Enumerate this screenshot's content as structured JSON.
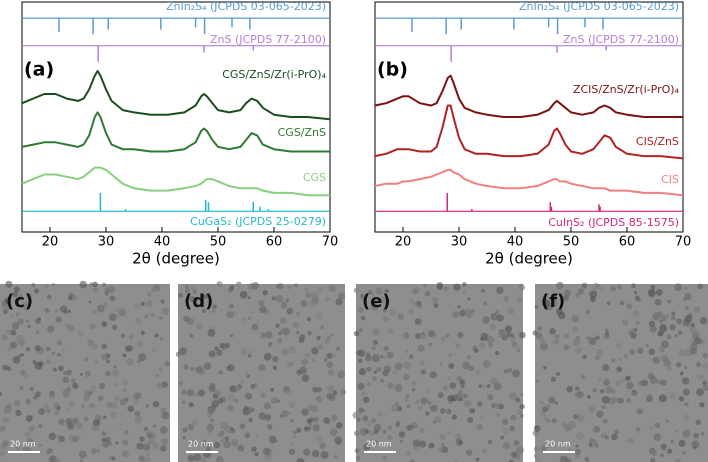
{
  "chart_data": [
    {
      "type": "line",
      "label": "(a)",
      "xlabel": "2θ (degree)",
      "xlim": [
        15,
        70
      ],
      "xticks": [
        20,
        30,
        40,
        50,
        60,
        70
      ],
      "ylim": [
        0,
        100
      ],
      "x": [
        15,
        17,
        19,
        20,
        21,
        23,
        25,
        26,
        27,
        28,
        28.5,
        29,
        30,
        31,
        33,
        35,
        38,
        41,
        44,
        46,
        47,
        47.5,
        48,
        49,
        50,
        52,
        54,
        55,
        56,
        57,
        58,
        60,
        63,
        66,
        70
      ],
      "series": [
        {
          "name": "CGS/ZnS/Zr(i-PrO)₄",
          "color": "#1b4d1f",
          "values": [
            56,
            58,
            60,
            60,
            60,
            58,
            57,
            58,
            62,
            68,
            70,
            68,
            62,
            57,
            53,
            52,
            51,
            51,
            52,
            55,
            59,
            60,
            59,
            56,
            53,
            52,
            53,
            56,
            58,
            57,
            54,
            51,
            50,
            50,
            49
          ]
        },
        {
          "name": "CGS/ZnS",
          "color": "#2f7a34",
          "values": [
            37,
            38,
            39,
            39,
            39,
            38,
            37,
            38,
            42,
            50,
            52,
            50,
            43,
            38,
            36,
            36,
            35,
            35,
            36,
            39,
            44,
            45,
            44,
            40,
            37,
            36,
            37,
            40,
            43,
            42,
            38,
            36,
            35,
            35,
            35
          ]
        },
        {
          "name": "CGS",
          "color": "#86d07e",
          "values": [
            21,
            23,
            25,
            25,
            25,
            24,
            23,
            24,
            26,
            28,
            28,
            28,
            27,
            25,
            21,
            19,
            18,
            18,
            19,
            20,
            21,
            22,
            23,
            23,
            22,
            20,
            19,
            19,
            19,
            19,
            18,
            17,
            17,
            16,
            16
          ]
        }
      ],
      "references": [
        {
          "name": "ZnIn₂S₄ (JCPDS 03-065-2023)",
          "color": "#5b9bd5",
          "base": 93,
          "positions": [
            21.6,
            27.7,
            30.4,
            39.8,
            46,
            47.6,
            52.5,
            55.7
          ],
          "values": [
            87,
            86,
            88,
            88,
            89,
            86,
            89,
            88
          ]
        },
        {
          "name": "ZnS (JCPDS 77-2100)",
          "color": "#b57edc",
          "base": 81,
          "positions": [
            28.6,
            47.5,
            56.3
          ],
          "values": [
            74,
            78,
            79
          ]
        },
        {
          "name": "CuGaS₂ (JCPDS 25-0279)",
          "color": "#26b8c8",
          "base": 9,
          "positions": [
            29,
            33.5,
            47.8,
            48.3,
            56.3,
            57.5,
            59
          ],
          "values": [
            17,
            10,
            14,
            13,
            13,
            11,
            10
          ]
        }
      ]
    },
    {
      "type": "line",
      "label": "(b)",
      "xlabel": "2θ (degree)",
      "xlim": [
        15,
        70
      ],
      "xticks": [
        20,
        30,
        40,
        50,
        60,
        70
      ],
      "ylim": [
        0,
        100
      ],
      "x": [
        15,
        17,
        19,
        20,
        21,
        23,
        25,
        26,
        27,
        28,
        28.5,
        29,
        30,
        31,
        33,
        35,
        38,
        41,
        44,
        46,
        47,
        47.5,
        48,
        49,
        50,
        52,
        54,
        55,
        56,
        57,
        58,
        60,
        63,
        66,
        70
      ],
      "series": [
        {
          "name": "ZCIS/ZnS/Zr(i-PrO)₄",
          "color": "#7b1212",
          "values": [
            55,
            56,
            58,
            59,
            59,
            56,
            55,
            56,
            61,
            67,
            68,
            65,
            58,
            54,
            52,
            51,
            50,
            50,
            51,
            53,
            56,
            57,
            56,
            54,
            52,
            51,
            52,
            54,
            55,
            54,
            52,
            51,
            50,
            50,
            50
          ]
        },
        {
          "name": "CIS/ZnS",
          "color": "#b22222",
          "values": [
            33,
            34,
            36,
            36,
            36,
            35,
            35,
            37,
            45,
            55,
            55,
            50,
            41,
            36,
            34,
            34,
            33,
            33,
            34,
            38,
            44,
            45,
            43,
            38,
            35,
            34,
            36,
            39,
            42,
            41,
            37,
            34,
            33,
            33,
            32
          ]
        },
        {
          "name": "CIS",
          "color": "#f08080",
          "values": [
            20,
            21,
            21,
            22,
            22,
            23,
            24,
            25,
            26,
            27,
            27,
            26,
            25,
            23,
            21,
            20,
            19,
            19,
            20,
            22,
            23,
            23,
            22,
            22,
            21,
            20,
            19,
            19,
            19,
            18,
            18,
            18,
            17,
            17,
            16
          ]
        }
      ],
      "references": [
        {
          "name": "ZnIn₂S₄ (JCPDS 03-065-2023)",
          "color": "#5b9bd5",
          "base": 93,
          "positions": [
            21.6,
            27.7,
            30.4,
            39.8,
            46,
            47.6,
            52.5,
            55.7
          ],
          "values": [
            87,
            86,
            88,
            88,
            89,
            86,
            89,
            88
          ]
        },
        {
          "name": "ZnS (JCPDS 77-2100)",
          "color": "#b57edc",
          "base": 81,
          "positions": [
            28.6,
            47.5,
            56.3
          ],
          "values": [
            74,
            78,
            79
          ]
        },
        {
          "name": "CuInS₂ (JCPDS 85-1575)",
          "color": "#d6257f",
          "base": 9,
          "positions": [
            27.9,
            32.3,
            46.3,
            46.5,
            55,
            55.2
          ],
          "values": [
            17,
            10,
            13,
            11,
            12,
            11
          ]
        }
      ]
    }
  ],
  "images": [
    {
      "label": "(c)",
      "scale": "20 nm"
    },
    {
      "label": "(d)",
      "scale": "20 nm"
    },
    {
      "label": "(e)",
      "scale": "20 nm"
    },
    {
      "label": "(f)",
      "scale": "20 nm"
    }
  ]
}
